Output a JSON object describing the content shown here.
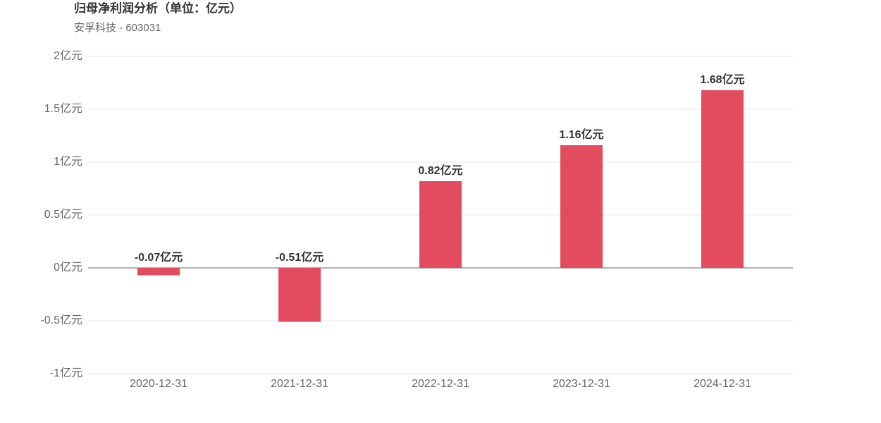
{
  "chart_data": {
    "type": "bar",
    "title": "归母净利润分析（单位：亿元）",
    "subtitle": "安孚科技 - 603031",
    "categories": [
      "2020-12-31",
      "2021-12-31",
      "2022-12-31",
      "2023-12-31",
      "2024-12-31"
    ],
    "values": [
      -0.07,
      -0.51,
      0.82,
      1.16,
      1.68
    ],
    "value_labels": [
      "-0.07亿元",
      "-0.51亿元",
      "0.82亿元",
      "1.16亿元",
      "1.68亿元"
    ],
    "color": "#e34c5e",
    "ylim": [
      -1,
      2
    ],
    "yticks": [
      {
        "value": -1,
        "label": "-1亿元"
      },
      {
        "value": -0.5,
        "label": "-0.5亿元"
      },
      {
        "value": 0,
        "label": "0亿元"
      },
      {
        "value": 0.5,
        "label": "0.5亿元"
      },
      {
        "value": 1,
        "label": "1亿元"
      },
      {
        "value": 1.5,
        "label": "1.5亿元"
      },
      {
        "value": 2,
        "label": "2亿元"
      }
    ],
    "grid": true
  }
}
